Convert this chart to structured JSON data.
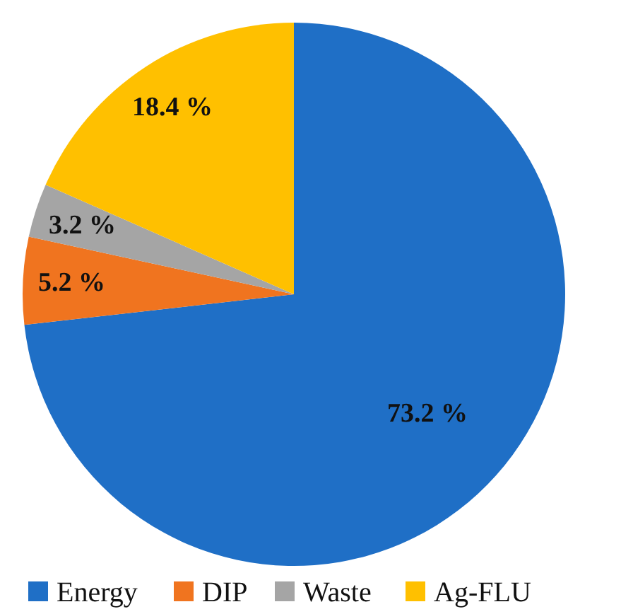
{
  "chart_data": {
    "type": "pie",
    "categories": [
      "Energy",
      "DIP",
      "Waste",
      "Ag-FLU"
    ],
    "values": [
      73.2,
      5.2,
      3.2,
      18.4
    ],
    "colors": [
      "#1f6fc6",
      "#f0741f",
      "#a5a5a5",
      "#ffc000"
    ],
    "value_labels": [
      "73.2 %",
      "5.2 %",
      "3.2 %",
      "18.4 %"
    ],
    "legend": "bottom"
  }
}
